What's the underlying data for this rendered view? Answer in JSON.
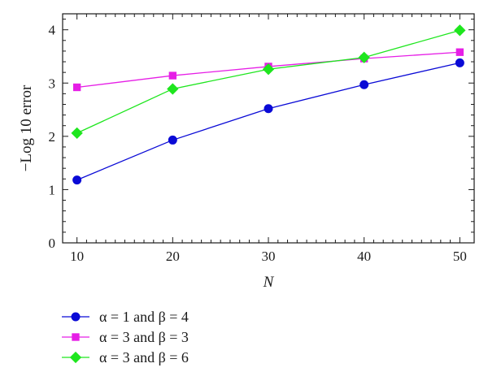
{
  "chart_data": {
    "type": "line",
    "xlabel": "N",
    "ylabel": "−Log 10 error",
    "xlim": [
      8.5,
      51.5
    ],
    "ylim": [
      0,
      4.3
    ],
    "x_ticks": [
      10,
      20,
      30,
      40,
      50
    ],
    "y_ticks": [
      0,
      1,
      2,
      3,
      4
    ],
    "x": [
      10,
      20,
      30,
      40,
      50
    ],
    "grid": false,
    "legend_position": "below",
    "series": [
      {
        "name": "α = 1 and β = 4",
        "color": "#0a0ad6",
        "marker": "circle",
        "values": [
          1.18,
          1.93,
          2.52,
          2.97,
          3.38
        ]
      },
      {
        "name": "α = 3 and β = 3",
        "color": "#e61ee6",
        "marker": "square",
        "values": [
          2.92,
          3.14,
          3.31,
          3.46,
          3.58
        ]
      },
      {
        "name": "α = 3 and β = 6",
        "color": "#1ee61e",
        "marker": "diamond",
        "values": [
          2.06,
          2.89,
          3.26,
          3.48,
          3.99
        ]
      }
    ]
  }
}
